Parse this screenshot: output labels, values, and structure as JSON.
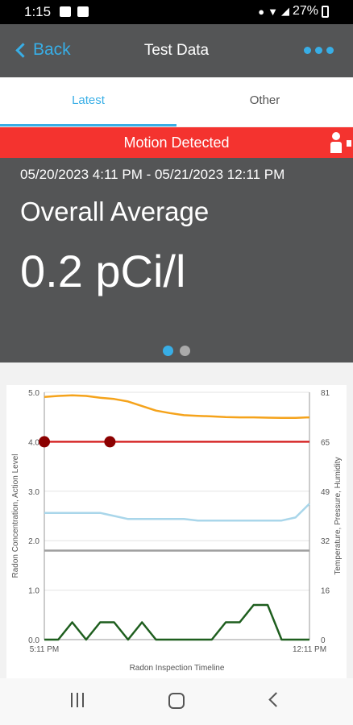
{
  "status_bar": {
    "time": "1:15",
    "battery": "27%"
  },
  "header": {
    "back_label": "Back",
    "title": "Test Data"
  },
  "tabs": [
    {
      "label": "Latest",
      "active": true
    },
    {
      "label": "Other",
      "active": false
    }
  ],
  "alert": {
    "text": "Motion Detected",
    "color": "#f4332f"
  },
  "summary": {
    "date_range": "05/20/2023 4:11 PM - 05/21/2023 12:11 PM",
    "label": "Overall Average",
    "value": "0.2 pCi/l"
  },
  "chart_data": {
    "type": "line",
    "x": [
      "5:11 PM",
      "",
      "",
      "",
      "",
      "",
      "",
      "",
      "",
      "",
      "",
      "",
      "",
      "",
      "",
      "",
      "",
      "",
      "",
      "12:11 PM"
    ],
    "x_tick_labels": [
      "5:11 PM",
      "12:11 PM"
    ],
    "xlabel": "Radon Inspection Timeline",
    "ylabel_left": "Radon Concentration, Action Level",
    "ylabel_right": "Temperature, Pressure, Humidity",
    "ylim_left": [
      0,
      5
    ],
    "ylim_right": [
      0,
      81
    ],
    "left_ticks": [
      "0.0",
      "1.0",
      "2.0",
      "3.0",
      "4.0",
      "5.0"
    ],
    "right_ticks": [
      "0",
      "16",
      "32",
      "49",
      "65",
      "81"
    ],
    "grid": true,
    "series": [
      {
        "axis": "right",
        "color": "#f5a31b",
        "values": [
          79.5,
          79.8,
          80,
          79.8,
          79.2,
          78.8,
          78,
          76.5,
          75,
          74.2,
          73.5,
          73.3,
          73.1,
          72.9,
          72.8,
          72.8,
          72.7,
          72.6,
          72.6,
          72.8
        ]
      },
      {
        "axis": "left",
        "color": "#d62828",
        "values": [
          4,
          4,
          4,
          4,
          4,
          4,
          4,
          4,
          4,
          4,
          4,
          4,
          4,
          4,
          4,
          4,
          4,
          4,
          4,
          4
        ]
      },
      {
        "axis": "right",
        "color": "#a9d6ea",
        "values": [
          41.5,
          41.5,
          41.5,
          41.5,
          41.5,
          40.5,
          39.5,
          39.5,
          39.5,
          39.5,
          39.5,
          39,
          39,
          39,
          39,
          39,
          39,
          39,
          40,
          44.5
        ]
      },
      {
        "axis": "left",
        "color": "#9e9e9e",
        "values": [
          1.8,
          1.8,
          1.8,
          1.8,
          1.8,
          1.8,
          1.8,
          1.8,
          1.8,
          1.8,
          1.8,
          1.8,
          1.8,
          1.8,
          1.8,
          1.8,
          1.8,
          1.8,
          1.8,
          1.8
        ]
      },
      {
        "axis": "left",
        "color": "#1e5e1e",
        "values": [
          0,
          0,
          0.35,
          0,
          0.35,
          0.35,
          0,
          0.35,
          0,
          0,
          0,
          0,
          0,
          0.35,
          0.35,
          0.7,
          0.7,
          0,
          0,
          0
        ]
      }
    ],
    "markers": [
      {
        "x_index": 0,
        "y": 4,
        "color": "#8b0000"
      },
      {
        "x_index": 4.7,
        "y": 4,
        "color": "#8b0000"
      }
    ]
  }
}
